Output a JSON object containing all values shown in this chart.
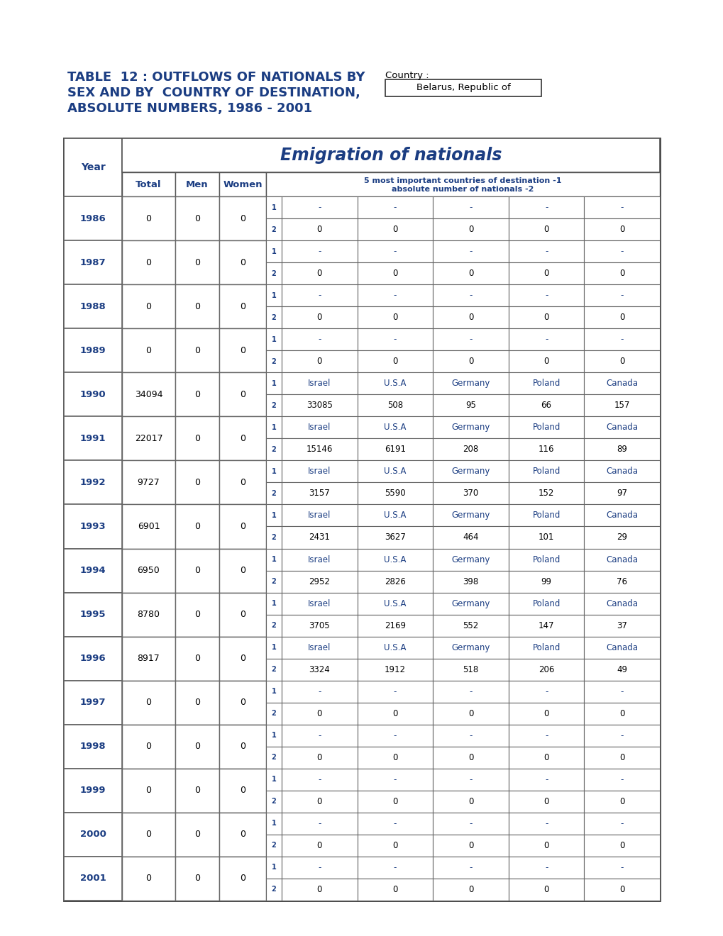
{
  "title_line1": "TABLE  12 : OUTFLOWS OF NATIONALS BY",
  "title_line2": "SEX AND BY  COUNTRY OF DESTINATION,",
  "title_line3": "ABSOLUTE NUMBERS, 1986 - 2001",
  "country_label": "Country :",
  "country_value": "Belarus, Republic of",
  "table_header_main": "Emigration of nationals",
  "table_header_sub1": "5 most important countries of destination -1",
  "table_header_sub2": "absolute number of nationals -2",
  "title_color": "#1b3d82",
  "black": "#000000",
  "rows": [
    {
      "year": "1986",
      "total": "0",
      "men": "0",
      "women": "0",
      "row1": [
        "-",
        "-",
        "-",
        "-",
        "-"
      ],
      "row2": [
        "0",
        "0",
        "0",
        "0",
        "0"
      ]
    },
    {
      "year": "1987",
      "total": "0",
      "men": "0",
      "women": "0",
      "row1": [
        "-",
        "-",
        "-",
        "-",
        "-"
      ],
      "row2": [
        "0",
        "0",
        "0",
        "0",
        "0"
      ]
    },
    {
      "year": "1988",
      "total": "0",
      "men": "0",
      "women": "0",
      "row1": [
        "-",
        "-",
        "-",
        "-",
        "-"
      ],
      "row2": [
        "0",
        "0",
        "0",
        "0",
        "0"
      ]
    },
    {
      "year": "1989",
      "total": "0",
      "men": "0",
      "women": "0",
      "row1": [
        "-",
        "-",
        "-",
        "-",
        "-"
      ],
      "row2": [
        "0",
        "0",
        "0",
        "0",
        "0"
      ]
    },
    {
      "year": "1990",
      "total": "34094",
      "men": "0",
      "women": "0",
      "row1": [
        "Israel",
        "U.S.A",
        "Germany",
        "Poland",
        "Canada"
      ],
      "row2": [
        "33085",
        "508",
        "95",
        "66",
        "157"
      ]
    },
    {
      "year": "1991",
      "total": "22017",
      "men": "0",
      "women": "0",
      "row1": [
        "Israel",
        "U.S.A",
        "Germany",
        "Poland",
        "Canada"
      ],
      "row2": [
        "15146",
        "6191",
        "208",
        "116",
        "89"
      ]
    },
    {
      "year": "1992",
      "total": "9727",
      "men": "0",
      "women": "0",
      "row1": [
        "Israel",
        "U.S.A",
        "Germany",
        "Poland",
        "Canada"
      ],
      "row2": [
        "3157",
        "5590",
        "370",
        "152",
        "97"
      ]
    },
    {
      "year": "1993",
      "total": "6901",
      "men": "0",
      "women": "0",
      "row1": [
        "Israel",
        "U.S.A",
        "Germany",
        "Poland",
        "Canada"
      ],
      "row2": [
        "2431",
        "3627",
        "464",
        "101",
        "29"
      ]
    },
    {
      "year": "1994",
      "total": "6950",
      "men": "0",
      "women": "0",
      "row1": [
        "Israel",
        "U.S.A",
        "Germany",
        "Poland",
        "Canada"
      ],
      "row2": [
        "2952",
        "2826",
        "398",
        "99",
        "76"
      ]
    },
    {
      "year": "1995",
      "total": "8780",
      "men": "0",
      "women": "0",
      "row1": [
        "Israel",
        "U.S.A",
        "Germany",
        "Poland",
        "Canada"
      ],
      "row2": [
        "3705",
        "2169",
        "552",
        "147",
        "37"
      ]
    },
    {
      "year": "1996",
      "total": "8917",
      "men": "0",
      "women": "0",
      "row1": [
        "Israel",
        "U.S.A",
        "Germany",
        "Poland",
        "Canada"
      ],
      "row2": [
        "3324",
        "1912",
        "518",
        "206",
        "49"
      ]
    },
    {
      "year": "1997",
      "total": "0",
      "men": "0",
      "women": "0",
      "row1": [
        "-",
        "-",
        "-",
        "-",
        "-"
      ],
      "row2": [
        "0",
        "0",
        "0",
        "0",
        "0"
      ]
    },
    {
      "year": "1998",
      "total": "0",
      "men": "0",
      "women": "0",
      "row1": [
        "-",
        "-",
        "-",
        "-",
        "-"
      ],
      "row2": [
        "0",
        "0",
        "0",
        "0",
        "0"
      ]
    },
    {
      "year": "1999",
      "total": "0",
      "men": "0",
      "women": "0",
      "row1": [
        "-",
        "-",
        "-",
        "-",
        "-"
      ],
      "row2": [
        "0",
        "0",
        "0",
        "0",
        "0"
      ]
    },
    {
      "year": "2000",
      "total": "0",
      "men": "0",
      "women": "0",
      "row1": [
        "-",
        "-",
        "-",
        "-",
        "-"
      ],
      "row2": [
        "0",
        "0",
        "0",
        "0",
        "0"
      ]
    },
    {
      "year": "2001",
      "total": "0",
      "men": "0",
      "women": "0",
      "row1": [
        "-",
        "-",
        "-",
        "-",
        "-"
      ],
      "row2": [
        "0",
        "0",
        "0",
        "0",
        "0"
      ]
    }
  ],
  "fig_width": 10.2,
  "fig_height": 13.2,
  "dpi": 100
}
